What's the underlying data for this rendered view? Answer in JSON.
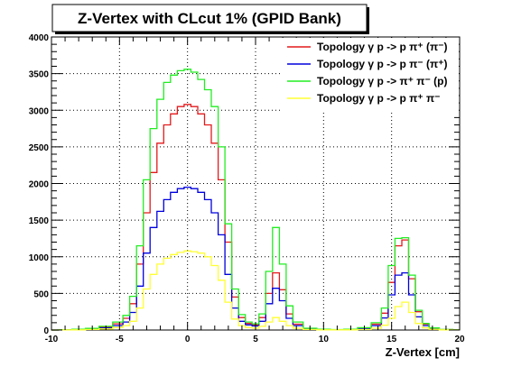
{
  "chart_data": {
    "type": "line",
    "title": "Z-Vertex with CLcut 1% (GPID Bank)",
    "xlabel": "Z-Vertex [cm]",
    "ylabel": "",
    "xlim": [
      -10,
      20
    ],
    "ylim": [
      0,
      4000
    ],
    "xticks": [
      -10,
      -5,
      0,
      5,
      10,
      15,
      20
    ],
    "yticks": [
      0,
      500,
      1000,
      1500,
      2000,
      2500,
      3000,
      3500,
      4000
    ],
    "grid": true,
    "legend_position": "top-right",
    "x": [
      -10,
      -9,
      -8,
      -7,
      -6,
      -5,
      -4.5,
      -4,
      -3.5,
      -3,
      -2.5,
      -2,
      -1.5,
      -1,
      -0.5,
      0,
      0.5,
      1,
      1.5,
      2,
      2.5,
      3,
      3.5,
      4,
      4.5,
      5,
      5.5,
      6,
      6.5,
      7,
      7.5,
      8,
      9,
      10,
      11,
      12,
      13,
      14,
      14.5,
      15,
      15.5,
      16,
      16.5,
      17,
      17.5,
      18,
      19,
      20
    ],
    "series": [
      {
        "name": "Topology γ p -> p π⁺ (π⁻)",
        "color": "#e31a1c",
        "values": [
          0,
          3,
          8,
          18,
          40,
          85,
          160,
          360,
          900,
          1600,
          2150,
          2550,
          2800,
          2950,
          3050,
          3080,
          3050,
          2950,
          2800,
          2550,
          2050,
          1200,
          450,
          170,
          90,
          70,
          170,
          500,
          780,
          550,
          220,
          80,
          20,
          8,
          5,
          8,
          25,
          80,
          230,
          650,
          1150,
          1230,
          700,
          250,
          80,
          30,
          6,
          2
        ]
      },
      {
        "name": "Topology γ p -> p π⁻ (π⁺)",
        "color": "#0000dd",
        "values": [
          0,
          2,
          5,
          12,
          28,
          60,
          110,
          240,
          600,
          1050,
          1400,
          1620,
          1780,
          1880,
          1930,
          1950,
          1930,
          1880,
          1780,
          1600,
          1300,
          760,
          300,
          120,
          70,
          55,
          120,
          360,
          570,
          400,
          160,
          60,
          15,
          6,
          4,
          6,
          18,
          60,
          165,
          480,
          750,
          780,
          480,
          180,
          60,
          20,
          4,
          1
        ]
      },
      {
        "name": "Topology γ p -> π⁺ π⁻ (p)",
        "color": "#22ee22",
        "values": [
          0,
          3,
          10,
          22,
          50,
          110,
          200,
          460,
          1150,
          2050,
          2750,
          3150,
          3380,
          3480,
          3540,
          3560,
          3520,
          3420,
          3280,
          3050,
          2500,
          1450,
          560,
          210,
          110,
          85,
          220,
          800,
          1400,
          900,
          330,
          110,
          25,
          10,
          6,
          10,
          32,
          100,
          300,
          880,
          1250,
          1260,
          750,
          270,
          90,
          30,
          7,
          2
        ]
      },
      {
        "name": "Topology γ p -> p π⁺ π⁻",
        "color": "#ffff33",
        "values": [
          0,
          1,
          3,
          7,
          16,
          35,
          60,
          120,
          300,
          560,
          760,
          900,
          980,
          1030,
          1060,
          1080,
          1070,
          1050,
          1000,
          880,
          680,
          380,
          150,
          60,
          35,
          25,
          50,
          110,
          170,
          120,
          60,
          25,
          8,
          3,
          2,
          3,
          8,
          25,
          65,
          160,
          320,
          380,
          240,
          90,
          30,
          10,
          2,
          1
        ]
      }
    ]
  }
}
